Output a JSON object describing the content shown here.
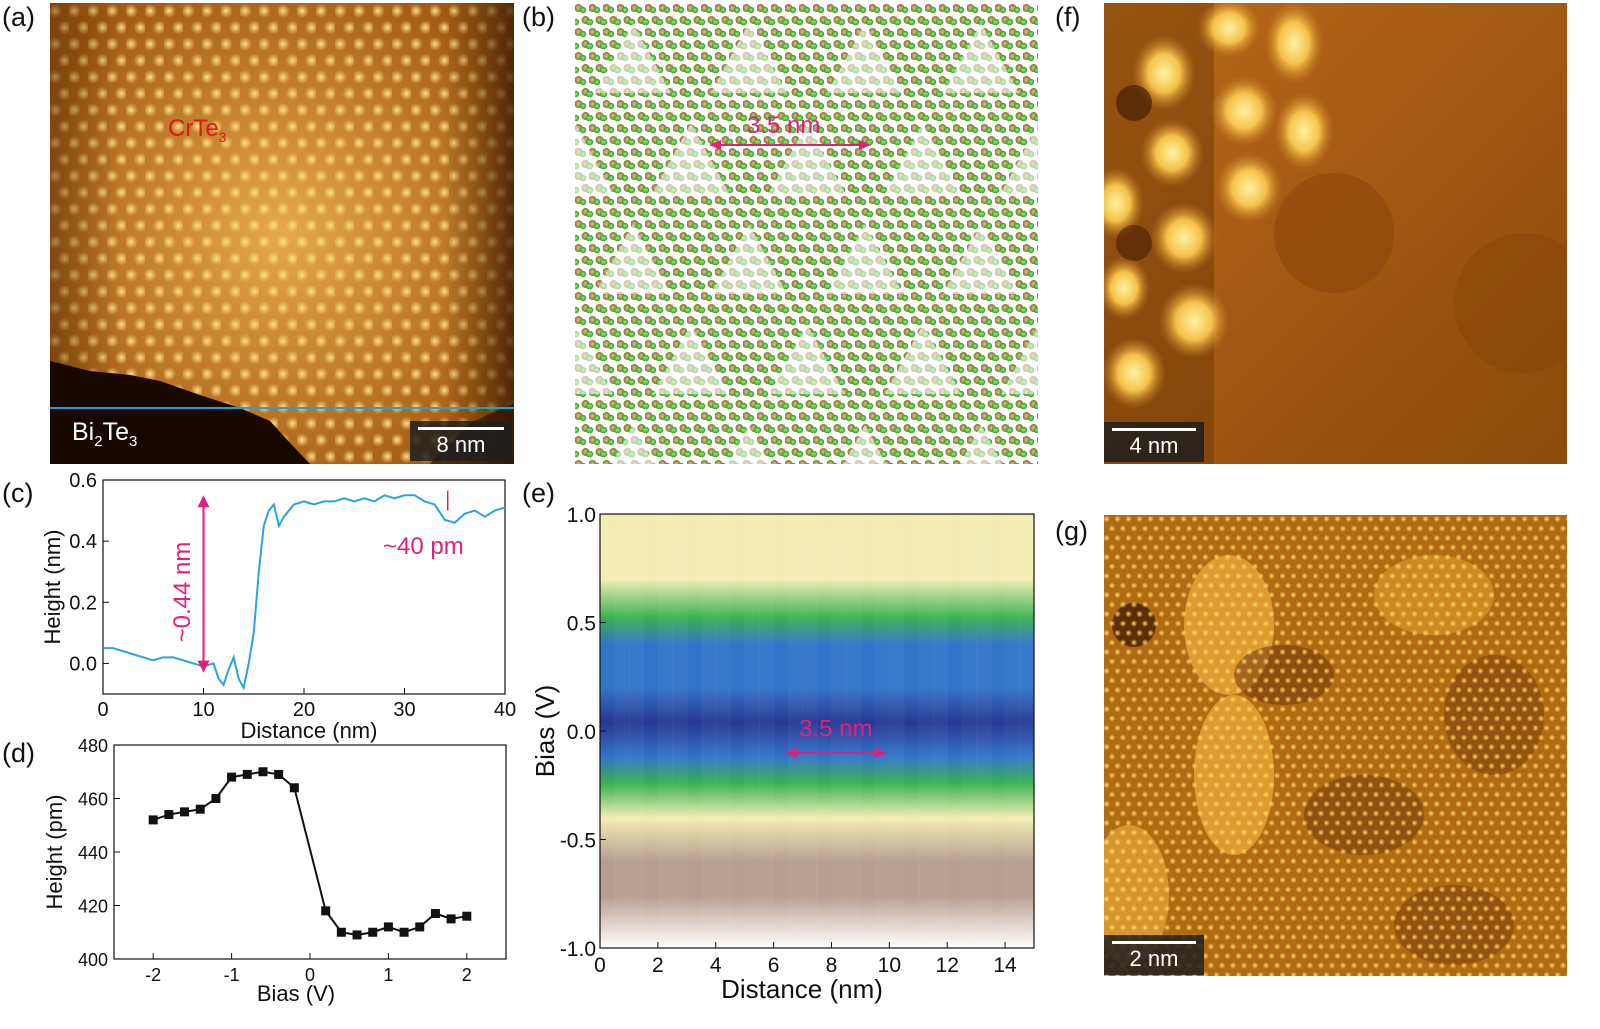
{
  "panels": {
    "a": {
      "letter": "(a)",
      "label_film": "CrTe",
      "label_film_sub": "3",
      "label_sub": "Bi",
      "label_sub_s1": "2",
      "label_sub_te": "Te",
      "label_sub_s2": "3",
      "scalebar": "8 nm"
    },
    "b": {
      "letter": "(b)",
      "annotation": "3.5 nm"
    },
    "f": {
      "letter": "(f)",
      "scalebar": "4 nm"
    },
    "g": {
      "letter": "(g)",
      "scalebar": "2 nm"
    },
    "e": {
      "letter": "(e)",
      "annotation": "3.5 nm",
      "colors": [
        "#ffffff",
        "#b59a8a",
        "#f2edb0",
        "#2fae4a",
        "#2a6fc8",
        "#1f2f8f"
      ]
    }
  },
  "chart_data": [
    {
      "id": "c",
      "letter": "(c)",
      "type": "line",
      "xlabel": "Distance (nm)",
      "ylabel": "Height (nm)",
      "xlim": [
        0,
        40
      ],
      "ylim": [
        -0.1,
        0.6
      ],
      "xticks": [
        "0",
        "10",
        "20",
        "30",
        "40"
      ],
      "yticks": [
        "0.0",
        "0.2",
        "0.4",
        "0.6"
      ],
      "annotations": [
        "~0.44 nm",
        "~40 pm"
      ],
      "color": "#2aa3e0",
      "x": [
        0,
        1,
        2,
        3,
        4,
        5,
        6,
        7,
        8,
        9,
        10,
        11,
        11.5,
        12,
        12.5,
        13,
        13.5,
        14,
        14.5,
        15,
        15.5,
        16,
        16.5,
        17,
        17.5,
        18,
        19,
        20,
        21,
        22,
        23,
        24,
        25,
        26,
        27,
        28,
        29,
        30,
        31,
        32,
        33,
        34,
        35,
        36,
        37,
        38,
        39,
        40
      ],
      "y": [
        0.05,
        0.05,
        0.04,
        0.03,
        0.02,
        0.01,
        0.02,
        0.02,
        0.01,
        0.0,
        -0.01,
        0.0,
        -0.05,
        -0.07,
        -0.02,
        0.02,
        -0.05,
        -0.08,
        0.0,
        0.1,
        0.3,
        0.45,
        0.5,
        0.52,
        0.45,
        0.48,
        0.52,
        0.53,
        0.52,
        0.53,
        0.53,
        0.54,
        0.53,
        0.54,
        0.53,
        0.55,
        0.54,
        0.55,
        0.55,
        0.53,
        0.52,
        0.47,
        0.46,
        0.49,
        0.5,
        0.48,
        0.5,
        0.51
      ]
    },
    {
      "id": "d",
      "letter": "(d)",
      "type": "line",
      "xlabel": "Bias (V)",
      "ylabel": "Height (pm)",
      "xlim": [
        -2.5,
        2.5
      ],
      "ylim": [
        400,
        480
      ],
      "xticks": [
        "-2",
        "-1",
        "0",
        "1",
        "2"
      ],
      "yticks": [
        "400",
        "420",
        "440",
        "460",
        "480"
      ],
      "x": [
        -2.0,
        -1.8,
        -1.6,
        -1.4,
        -1.2,
        -1.0,
        -0.8,
        -0.6,
        -0.4,
        -0.2,
        0.2,
        0.4,
        0.6,
        0.8,
        1.0,
        1.2,
        1.4,
        1.6,
        1.8,
        2.0
      ],
      "y": [
        452,
        454,
        455,
        456,
        460,
        468,
        469,
        470,
        469,
        464,
        418,
        410,
        409,
        410,
        412,
        410,
        412,
        417,
        415,
        416
      ]
    },
    {
      "id": "e",
      "type": "heatmap",
      "xlabel": "Distance (nm)",
      "ylabel": "Bias (V)",
      "xlim": [
        0,
        15
      ],
      "ylim": [
        -1.0,
        1.0
      ],
      "xticks": [
        "0",
        "2",
        "4",
        "6",
        "8",
        "10",
        "12",
        "14"
      ],
      "yticks": [
        "-1.0",
        "-0.5",
        "0.0",
        "0.5",
        "1.0"
      ]
    }
  ]
}
